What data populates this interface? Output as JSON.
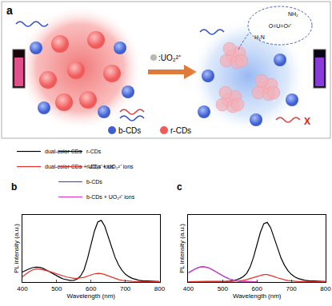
{
  "diagram": {
    "label": "a",
    "ion_legend": ":UO₂²⁺",
    "structure": [
      "NH₂",
      "O=U=O²⁺",
      "H₂N"
    ],
    "quench_mark": "X",
    "legend": [
      {
        "name": "b-CDs",
        "color": "#3f5fd0"
      },
      {
        "name": "r-CDs",
        "color": "#f05a5a"
      }
    ]
  },
  "chart_data": [
    {
      "type": "line",
      "title": "b",
      "x_label": "Wavelength (nm)",
      "y_label": "PL intensity (a.u.)",
      "x": [
        400,
        410,
        420,
        430,
        440,
        450,
        460,
        470,
        480,
        490,
        500,
        510,
        520,
        530,
        540,
        550,
        560,
        570,
        580,
        590,
        600,
        610,
        620,
        630,
        640,
        650,
        660,
        670,
        680,
        690,
        700,
        710,
        720,
        730,
        740,
        750,
        760,
        770,
        780,
        790,
        800
      ],
      "series": [
        {
          "name": "dual-color CDs",
          "color": "#000000",
          "values": [
            40,
            47,
            53,
            58,
            60,
            59,
            55,
            48,
            40,
            32,
            25,
            18,
            12,
            8,
            6,
            7,
            12,
            25,
            50,
            95,
            150,
            205,
            242,
            248,
            225,
            185,
            140,
            100,
            70,
            48,
            32,
            22,
            15,
            10,
            7,
            5,
            4,
            3,
            3,
            2,
            2
          ]
        },
        {
          "name": "dual-color CDs + UO₂²⁺ ions",
          "color": "#e8312b",
          "values": [
            22,
            32,
            42,
            49,
            52,
            52,
            50,
            46,
            42,
            37,
            33,
            28,
            24,
            20,
            17,
            15,
            15,
            16,
            19,
            24,
            29,
            33,
            35,
            34,
            30,
            25,
            19,
            14,
            10,
            7,
            5,
            4,
            3,
            2,
            2,
            2,
            1,
            1,
            1,
            1,
            1
          ]
        }
      ],
      "xlim": [
        400,
        800
      ],
      "xticks": [
        400,
        500,
        600,
        700,
        800
      ],
      "ylim": [
        0,
        270
      ],
      "tick_labels": "x",
      "grid": false
    },
    {
      "type": "line",
      "title": "c",
      "x_label": "Wavelength (nm)",
      "y_label": "PL intensity (a.u.)",
      "x": [
        400,
        410,
        420,
        430,
        440,
        450,
        460,
        470,
        480,
        490,
        500,
        510,
        520,
        530,
        540,
        550,
        560,
        570,
        580,
        590,
        600,
        610,
        620,
        630,
        640,
        650,
        660,
        670,
        680,
        690,
        700,
        710,
        720,
        730,
        740,
        750,
        760,
        770,
        780,
        790,
        800
      ],
      "series": [
        {
          "name": "r-CDs",
          "color": "#000000",
          "values": [
            1,
            1,
            1,
            1,
            1,
            1,
            1,
            1,
            1,
            2,
            2,
            3,
            4,
            6,
            9,
            14,
            22,
            35,
            60,
            100,
            150,
            200,
            235,
            240,
            218,
            180,
            135,
            97,
            68,
            46,
            31,
            21,
            14,
            10,
            7,
            5,
            4,
            3,
            2,
            2,
            2
          ]
        },
        {
          "name": "r-CDs + UO₂²⁺ ions",
          "color": "#e8312b",
          "values": [
            1,
            1,
            1,
            1,
            1,
            1,
            1,
            1,
            1,
            1,
            1,
            2,
            2,
            3,
            4,
            5,
            7,
            10,
            14,
            19,
            24,
            28,
            30,
            30,
            27,
            22,
            17,
            12,
            9,
            6,
            4,
            3,
            2,
            2,
            1,
            1,
            1,
            1,
            1,
            1,
            1
          ]
        },
        {
          "name": "b-CDs",
          "color": "#4a4ae0",
          "values": [
            38,
            46,
            53,
            59,
            62,
            61,
            57,
            50,
            42,
            33,
            25,
            18,
            12,
            8,
            5,
            3,
            2,
            1,
            1,
            1,
            1,
            null,
            null,
            null,
            null,
            null,
            null,
            null,
            null,
            null,
            null,
            null,
            null,
            null,
            null,
            null,
            null,
            null,
            null,
            null,
            null
          ]
        },
        {
          "name": "b-CDs + UO₂²⁺ ions",
          "color": "#e040c0",
          "values": [
            36,
            45,
            52,
            58,
            61,
            60,
            56,
            49,
            41,
            33,
            25,
            18,
            12,
            8,
            5,
            3,
            2,
            1,
            1,
            1,
            1,
            null,
            null,
            null,
            null,
            null,
            null,
            null,
            null,
            null,
            null,
            null,
            null,
            null,
            null,
            null,
            null,
            null,
            null,
            null,
            null
          ]
        }
      ],
      "xlim": [
        400,
        800
      ],
      "xticks": [
        400,
        500,
        600,
        700,
        800
      ],
      "ylim": [
        0,
        270
      ],
      "tick_labels": "x",
      "grid": false
    }
  ]
}
